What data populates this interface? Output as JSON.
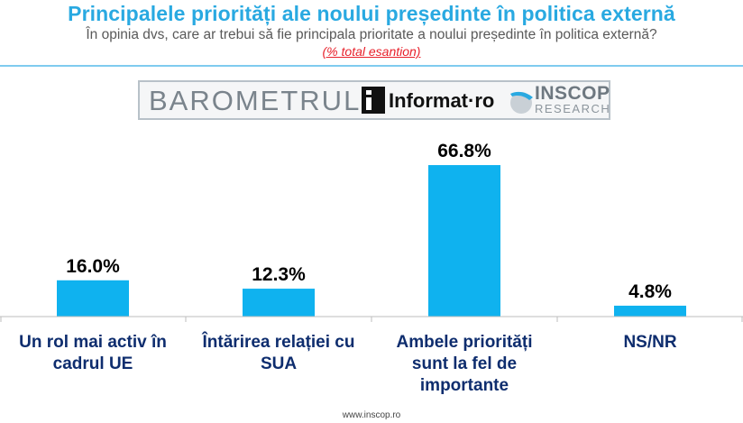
{
  "header": {
    "title": "Principalele priorități ale noului președinte în politica externă",
    "subtitle": "În opinia dvs, care ar trebui să fie principala prioritate a noului președinte în politica externă?",
    "note": "(% total esantion)"
  },
  "brand": {
    "barometer": "BAROMETRUL",
    "informat": "Informat·ro",
    "inscop": "INSCOP",
    "research": "RESEARCH"
  },
  "colors": {
    "accent": "#29a9e1",
    "bar": "#0fb2ef",
    "category": "#0e2d6e",
    "note": "#e8202a"
  },
  "chart_data": {
    "type": "bar",
    "title": "Principalele priorități ale noului președinte în politica externă",
    "categories": [
      [
        "Un rol mai activ în",
        "cadrul UE"
      ],
      [
        "Întărirea relației cu",
        "SUA"
      ],
      [
        "Ambele priorități",
        "sunt la fel de",
        "importante"
      ],
      [
        "NS/NR"
      ]
    ],
    "values": [
      16.0,
      12.3,
      66.8,
      4.8
    ],
    "value_labels": [
      "16.0%",
      "12.3%",
      "66.8%",
      "4.8%"
    ],
    "ylim": [
      0,
      70
    ],
    "unit": "%",
    "grid": false,
    "legend": "none"
  },
  "footer": {
    "url": "www.inscop.ro"
  }
}
